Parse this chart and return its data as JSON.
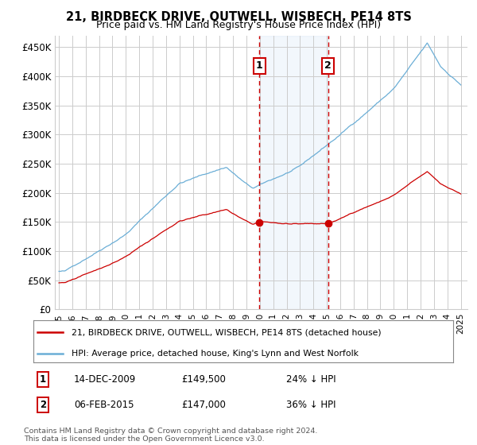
{
  "title": "21, BIRDBECK DRIVE, OUTWELL, WISBECH, PE14 8TS",
  "subtitle": "Price paid vs. HM Land Registry's House Price Index (HPI)",
  "ylabel_ticks": [
    "£0",
    "£50K",
    "£100K",
    "£150K",
    "£200K",
    "£250K",
    "£300K",
    "£350K",
    "£400K",
    "£450K"
  ],
  "ytick_values": [
    0,
    50000,
    100000,
    150000,
    200000,
    250000,
    300000,
    350000,
    400000,
    450000
  ],
  "ylim": [
    0,
    470000
  ],
  "xlim_start": 1994.7,
  "xlim_end": 2025.5,
  "marker1_x": 2009.96,
  "marker1_y": 149500,
  "marker2_x": 2015.09,
  "marker2_y": 147000,
  "vline1_x": 2009.96,
  "vline2_x": 2015.09,
  "shade_xmin": 2009.96,
  "shade_xmax": 2015.09,
  "legend_line1": "21, BIRDBECK DRIVE, OUTWELL, WISBECH, PE14 8TS (detached house)",
  "legend_line2": "HPI: Average price, detached house, King's Lynn and West Norfolk",
  "sale1_date": "14-DEC-2009",
  "sale1_price": "£149,500",
  "sale1_hpi": "24% ↓ HPI",
  "sale2_date": "06-FEB-2015",
  "sale2_price": "£147,000",
  "sale2_hpi": "36% ↓ HPI",
  "footnote": "Contains HM Land Registry data © Crown copyright and database right 2024.\nThis data is licensed under the Open Government Licence v3.0.",
  "hpi_color": "#6baed6",
  "price_color": "#cc0000",
  "vline_color": "#cc0000",
  "shade_color": "#ddeeff",
  "background_color": "#ffffff",
  "grid_color": "#cccccc",
  "hpi_seed": 42,
  "price_seed": 123
}
